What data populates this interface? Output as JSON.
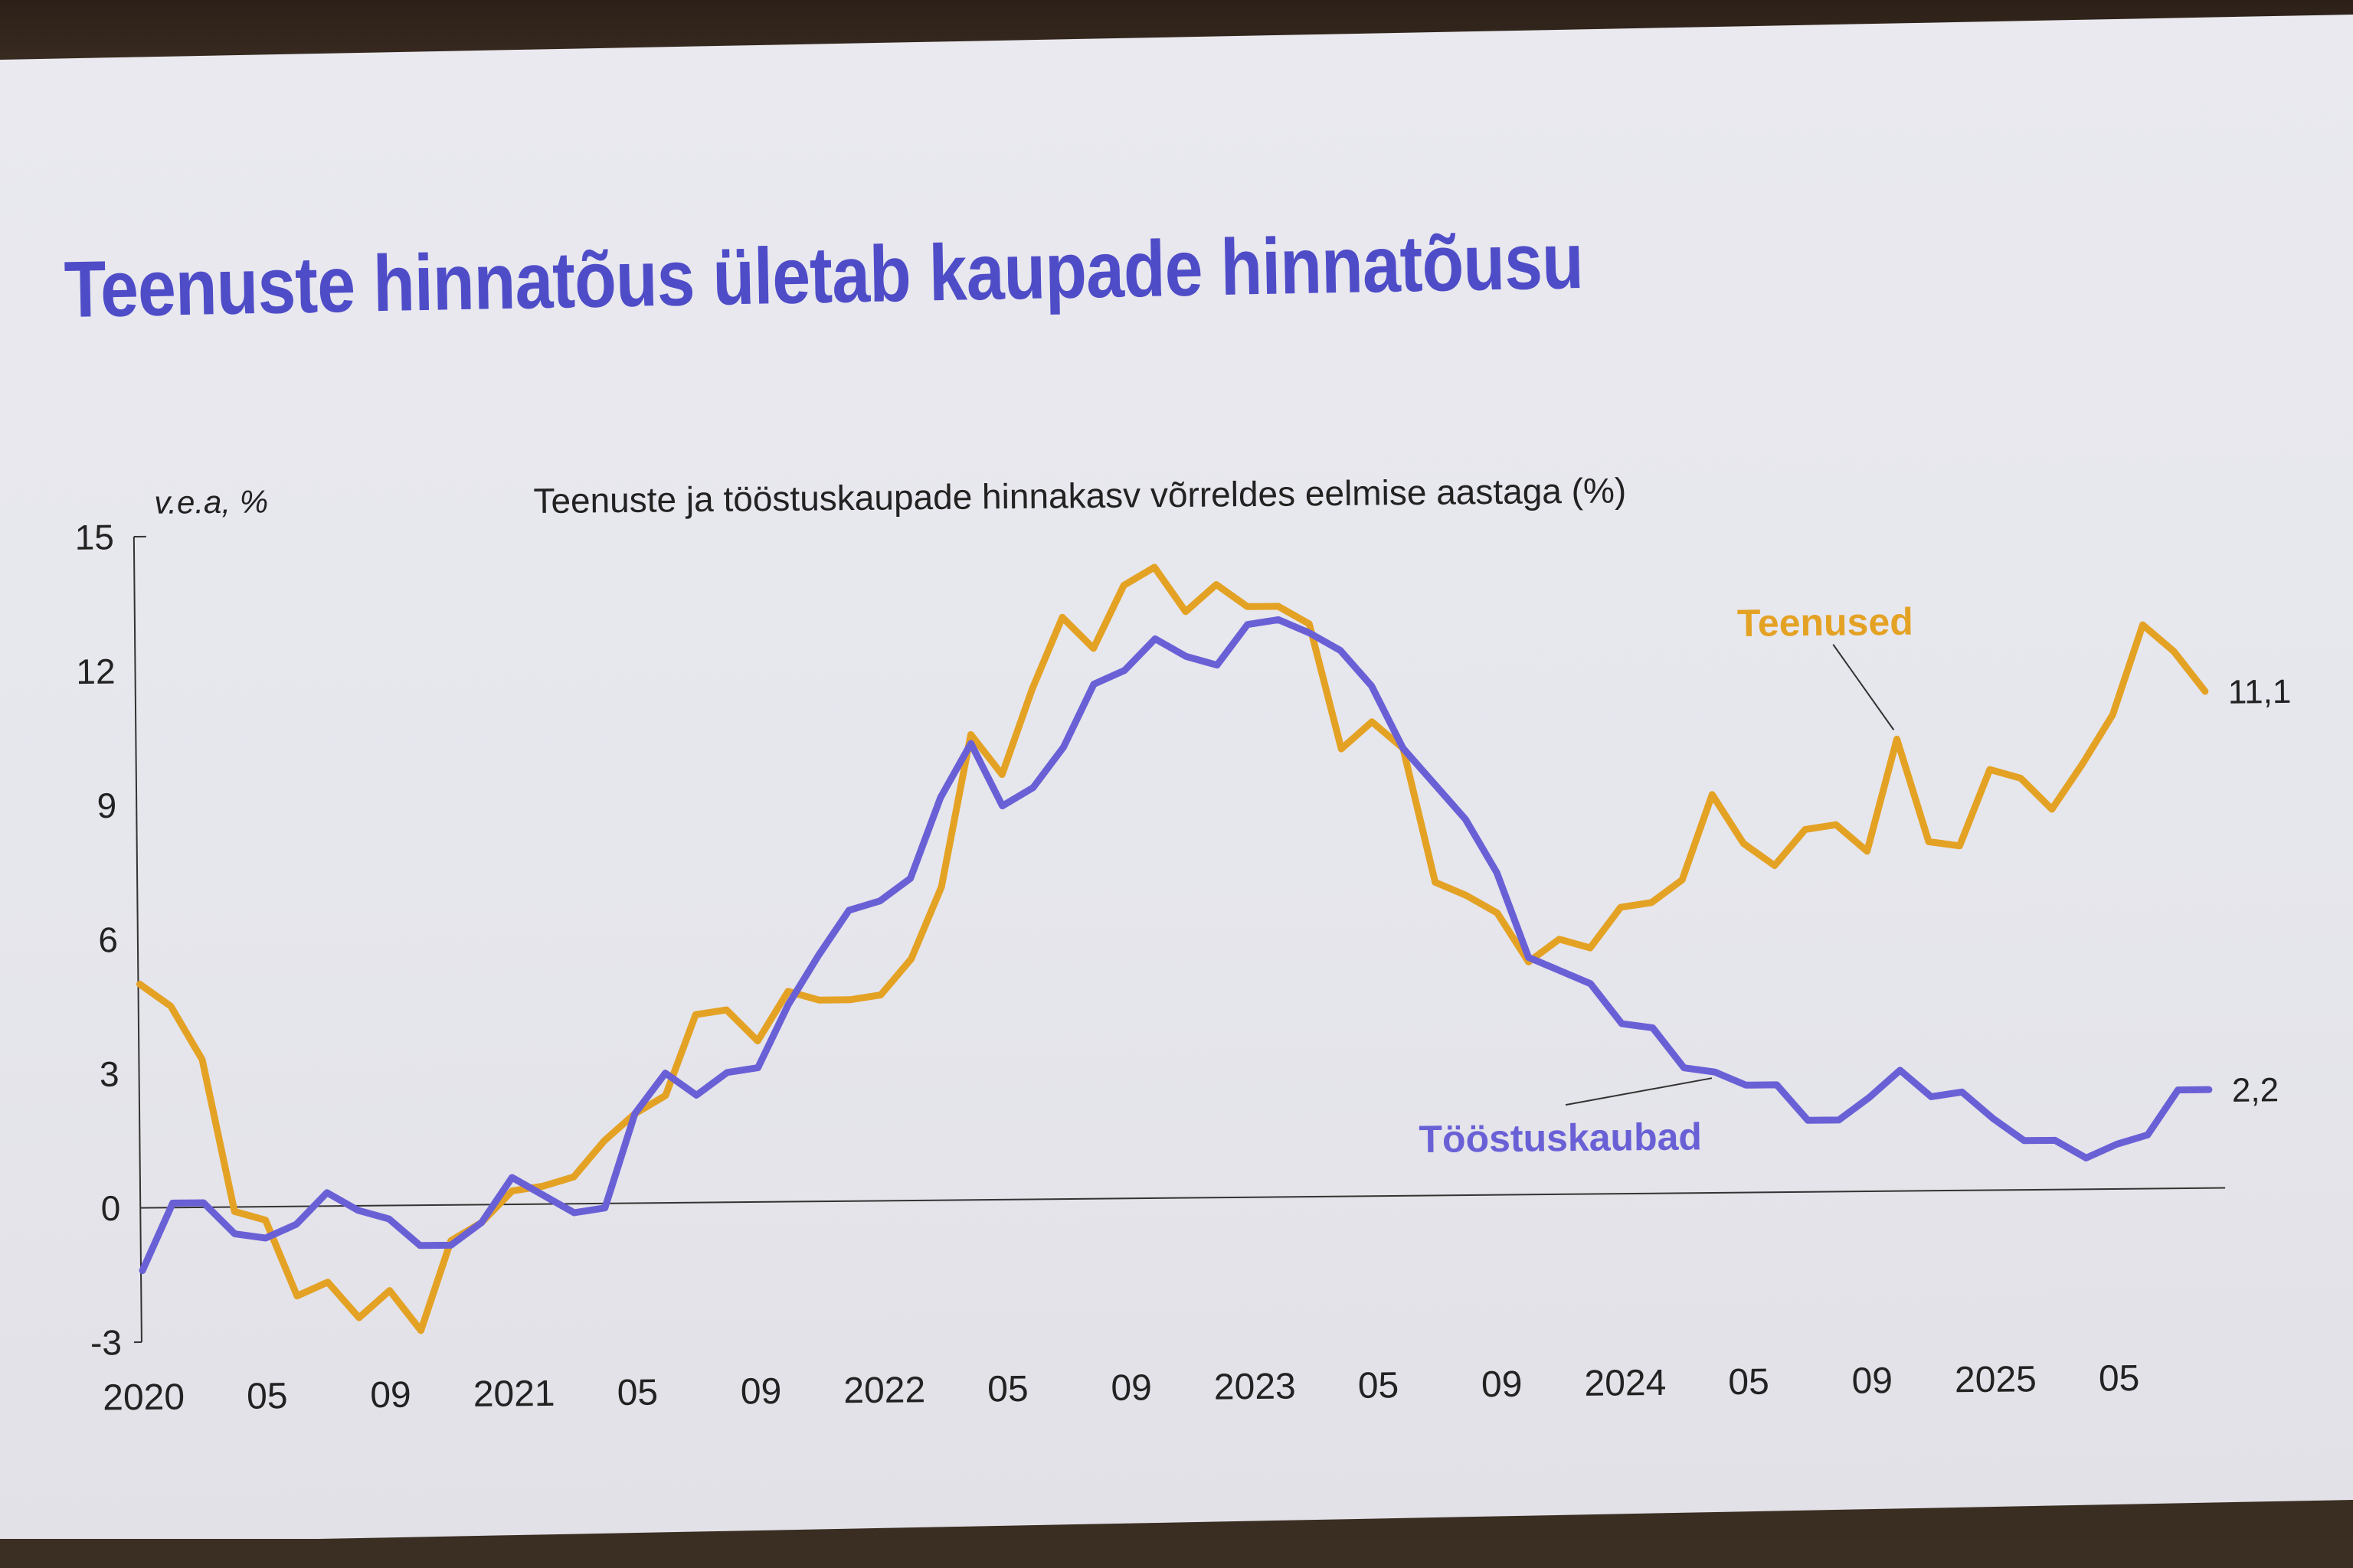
{
  "slide": {
    "title": "Teenuste hinnatõus ületab kaupade hinnatõusu"
  },
  "colors": {
    "title": "#4f4cc8",
    "teenused": "#e4a224",
    "tooostuskaubad": "#6a60d6"
  },
  "chart_data": {
    "type": "line",
    "title": "Teenuste ja tööstuskaupade hinnakasv võrreldes eelmise aastaga (%)",
    "ylabel": "v.e.a, %",
    "ylim": [
      -3,
      15
    ],
    "yticks": [
      "15",
      "12",
      "9",
      "6",
      "3",
      "0",
      "-3"
    ],
    "ytick_values": [
      15,
      12,
      9,
      6,
      3,
      0,
      -3
    ],
    "x": [
      "2020-01",
      "2020-02",
      "2020-03",
      "2020-04",
      "2020-05",
      "2020-06",
      "2020-07",
      "2020-08",
      "2020-09",
      "2020-10",
      "2020-11",
      "2020-12",
      "2021-01",
      "2021-02",
      "2021-03",
      "2021-04",
      "2021-05",
      "2021-06",
      "2021-07",
      "2021-08",
      "2021-09",
      "2021-10",
      "2021-11",
      "2021-12",
      "2022-01",
      "2022-02",
      "2022-03",
      "2022-04",
      "2022-05",
      "2022-06",
      "2022-07",
      "2022-08",
      "2022-09",
      "2022-10",
      "2022-11",
      "2022-12",
      "2023-01",
      "2023-02",
      "2023-03",
      "2023-04",
      "2023-05",
      "2023-06",
      "2023-07",
      "2023-08",
      "2023-09",
      "2023-10",
      "2023-11",
      "2023-12",
      "2024-01",
      "2024-02",
      "2024-03",
      "2024-04",
      "2024-05",
      "2024-06",
      "2024-07",
      "2024-08",
      "2024-09",
      "2024-10",
      "2024-11",
      "2024-12",
      "2025-01",
      "2025-02",
      "2025-03",
      "2025-04",
      "2025-05",
      "2025-06",
      "2025-07",
      "2025-08"
    ],
    "xticks": [
      {
        "label": "2020",
        "x": "2020-01"
      },
      {
        "label": "05",
        "x": "2020-05"
      },
      {
        "label": "09",
        "x": "2020-09"
      },
      {
        "label": "2021",
        "x": "2021-01"
      },
      {
        "label": "05",
        "x": "2021-05"
      },
      {
        "label": "09",
        "x": "2021-09"
      },
      {
        "label": "2022",
        "x": "2022-01"
      },
      {
        "label": "05",
        "x": "2022-05"
      },
      {
        "label": "09",
        "x": "2022-09"
      },
      {
        "label": "2023",
        "x": "2023-01"
      },
      {
        "label": "05",
        "x": "2023-05"
      },
      {
        "label": "09",
        "x": "2023-09"
      },
      {
        "label": "2024",
        "x": "2024-01"
      },
      {
        "label": "05",
        "x": "2024-05"
      },
      {
        "label": "09",
        "x": "2024-09"
      },
      {
        "label": "2025",
        "x": "2025-01"
      },
      {
        "label": "05",
        "x": "2025-05"
      }
    ],
    "series": [
      {
        "name": "Teenused",
        "color": "#e4a224",
        "end_label": "11,1",
        "values": [
          5.0,
          4.5,
          3.3,
          -0.1,
          -0.3,
          -2.0,
          -1.7,
          -2.5,
          -1.9,
          -2.8,
          -0.8,
          -0.4,
          0.3,
          0.4,
          0.6,
          1.4,
          2.0,
          2.4,
          4.2,
          4.3,
          3.6,
          4.7,
          4.5,
          4.5,
          4.6,
          5.4,
          7.0,
          10.4,
          9.5,
          11.4,
          13.0,
          12.3,
          13.7,
          14.1,
          13.1,
          13.7,
          13.2,
          13.2,
          12.8,
          10.0,
          10.6,
          10.0,
          7.0,
          6.7,
          6.3,
          5.2,
          5.7,
          5.5,
          6.4,
          6.5,
          7.0,
          8.9,
          7.8,
          7.3,
          8.1,
          8.2,
          7.6,
          10.1,
          7.8,
          7.7,
          9.4,
          9.2,
          8.5,
          9.5,
          10.6,
          12.6,
          12.0,
          11.1
        ]
      },
      {
        "name": "Tööstuskaubad",
        "color": "#6a60d6",
        "end_label": "2,2",
        "values": [
          -1.4,
          0.1,
          0.1,
          -0.6,
          -0.7,
          -0.4,
          0.3,
          -0.1,
          -0.3,
          -0.9,
          -0.9,
          -0.4,
          0.6,
          0.2,
          -0.2,
          -0.1,
          2.0,
          2.9,
          2.4,
          2.9,
          3.0,
          4.4,
          5.5,
          6.5,
          6.7,
          7.2,
          9.0,
          10.2,
          8.8,
          9.2,
          10.1,
          11.5,
          11.8,
          12.5,
          12.1,
          11.9,
          12.8,
          12.9,
          12.6,
          12.2,
          11.4,
          10.0,
          9.2,
          8.4,
          7.2,
          5.3,
          5.0,
          4.7,
          3.8,
          3.7,
          2.8,
          2.7,
          2.4,
          2.4,
          1.6,
          1.6,
          2.1,
          2.7,
          2.1,
          2.2,
          1.6,
          1.1,
          1.1,
          0.7,
          1.0,
          1.2,
          2.2,
          2.2
        ]
      }
    ],
    "annotations": [
      {
        "text": "Teenused",
        "series": "Teenused"
      },
      {
        "text": "Tööstuskaubad",
        "series": "Tööstuskaubad"
      }
    ]
  }
}
